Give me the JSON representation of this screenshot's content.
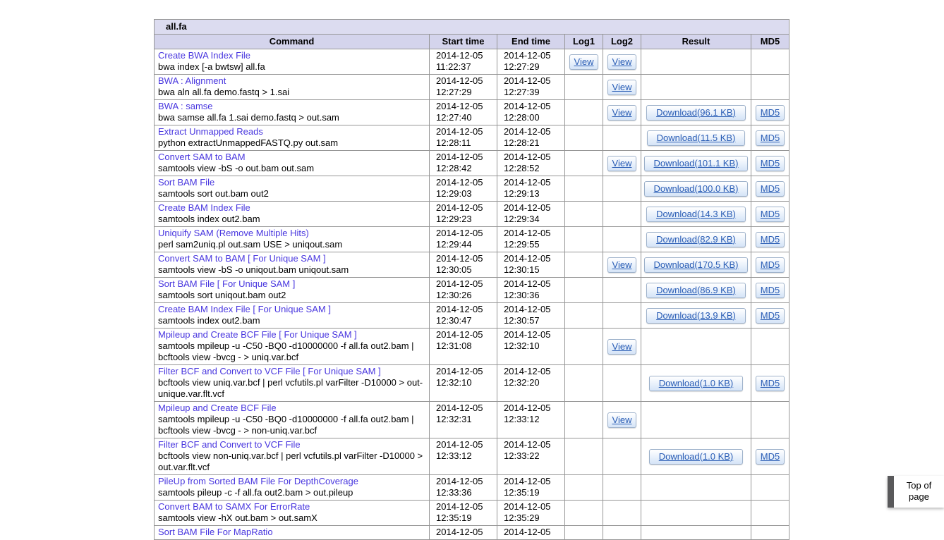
{
  "table": {
    "title": "all.fa",
    "columns": [
      "Command",
      "Start time",
      "End time",
      "Log1",
      "Log2",
      "Result",
      "MD5"
    ],
    "labels": {
      "view": "View",
      "md5": "MD5"
    },
    "rows": [
      {
        "title": "Create BWA Index File",
        "cmd": "bwa index [-a bwtsw] all.fa",
        "start": "2014-12-05 11:22:37",
        "end": "2014-12-05 12:27:29",
        "log1": true,
        "log2": true,
        "download": null,
        "md5": false
      },
      {
        "title": "BWA : Alignment",
        "cmd": "bwa aln all.fa demo.fastq > 1.sai",
        "start": "2014-12-05 12:27:29",
        "end": "2014-12-05 12:27:39",
        "log1": false,
        "log2": true,
        "download": null,
        "md5": false
      },
      {
        "title": "BWA : samse",
        "cmd": "bwa samse all.fa 1.sai demo.fastq > out.sam",
        "start": "2014-12-05 12:27:40",
        "end": "2014-12-05 12:28:00",
        "log1": false,
        "log2": true,
        "download": "Download(96.1 KB)",
        "md5": true
      },
      {
        "title": "Extract Unmapped Reads",
        "cmd": "python extractUnmappedFASTQ.py out.sam",
        "start": "2014-12-05 12:28:11",
        "end": "2014-12-05 12:28:21",
        "log1": false,
        "log2": false,
        "download": "Download(11.5 KB)",
        "md5": true
      },
      {
        "title": "Convert SAM to BAM",
        "cmd": "samtools view -bS -o out.bam out.sam",
        "start": "2014-12-05 12:28:42",
        "end": "2014-12-05 12:28:52",
        "log1": false,
        "log2": true,
        "download": "Download(101.1 KB)",
        "md5": true
      },
      {
        "title": "Sort BAM File",
        "cmd": "samtools sort out.bam out2",
        "start": "2014-12-05 12:29:03",
        "end": "2014-12-05 12:29:13",
        "log1": false,
        "log2": false,
        "download": "Download(100.0 KB)",
        "md5": true
      },
      {
        "title": "Create BAM Index File",
        "cmd": "samtools index out2.bam",
        "start": "2014-12-05 12:29:23",
        "end": "2014-12-05 12:29:34",
        "log1": false,
        "log2": false,
        "download": "Download(14.3 KB)",
        "md5": true
      },
      {
        "title": "Uniquify SAM (Remove Multiple Hits)",
        "cmd": "perl sam2uniq.pl out.sam USE > uniqout.sam",
        "start": "2014-12-05 12:29:44",
        "end": "2014-12-05 12:29:55",
        "log1": false,
        "log2": false,
        "download": "Download(82.9 KB)",
        "md5": true
      },
      {
        "title": "Convert SAM to BAM [ For Unique SAM ]",
        "cmd": "samtools view -bS -o uniqout.bam uniqout.sam",
        "start": "2014-12-05 12:30:05",
        "end": "2014-12-05 12:30:15",
        "log1": false,
        "log2": true,
        "download": "Download(170.5 KB)",
        "md5": true
      },
      {
        "title": "Sort BAM File [ For Unique SAM ]",
        "cmd": "samtools sort uniqout.bam out2",
        "start": "2014-12-05 12:30:26",
        "end": "2014-12-05 12:30:36",
        "log1": false,
        "log2": false,
        "download": "Download(86.9 KB)",
        "md5": true
      },
      {
        "title": "Create BAM Index File [ For Unique SAM ]",
        "cmd": "samtools index out2.bam",
        "start": "2014-12-05 12:30:47",
        "end": "2014-12-05 12:30:57",
        "log1": false,
        "log2": false,
        "download": "Download(13.9 KB)",
        "md5": true
      },
      {
        "title": "Mpileup and Create BCF File [ For Unique SAM ]",
        "cmd": "samtools mpileup -u -C50 -BQ0 -d10000000 -f all.fa out2.bam | bcftools view -bvcg - > uniq.var.bcf",
        "start": "2014-12-05 12:31:08",
        "end": "2014-12-05 12:32:10",
        "log1": false,
        "log2": true,
        "download": null,
        "md5": false
      },
      {
        "title": "Filter BCF and Convert to VCF File [ For Unique SAM ]",
        "cmd": "bcftools view uniq.var.bcf | perl vcfutils.pl varFilter -D10000 > out-unique.var.flt.vcf",
        "start": "2014-12-05 12:32:10",
        "end": "2014-12-05 12:32:20",
        "log1": false,
        "log2": false,
        "download": "Download(1.0 KB)",
        "md5": true
      },
      {
        "title": "Mpileup and Create BCF File",
        "cmd": "samtools mpileup -u -C50 -BQ0 -d10000000 -f all.fa out2.bam | bcftools view -bvcg - > non-uniq.var.bcf",
        "start": "2014-12-05 12:32:31",
        "end": "2014-12-05 12:33:12",
        "log1": false,
        "log2": true,
        "download": null,
        "md5": false
      },
      {
        "title": "Filter BCF and Convert to VCF File",
        "cmd": "bcftools view non-uniq.var.bcf | perl vcfutils.pl varFilter -D10000 > out.var.flt.vcf",
        "start": "2014-12-05 12:33:12",
        "end": "2014-12-05 12:33:22",
        "log1": false,
        "log2": false,
        "download": "Download(1.0 KB)",
        "md5": true
      },
      {
        "title": "PileUp from Sorted BAM File For DepthCoverage",
        "cmd": "samtools pileup -c -f all.fa out2.bam > out.pileup",
        "start": "2014-12-05 12:33:36",
        "end": "2014-12-05 12:35:19",
        "log1": false,
        "log2": false,
        "download": null,
        "md5": false
      },
      {
        "title": "Convert BAM to SAMX For ErrorRate",
        "cmd": "samtools view -hX out.bam > out.samX",
        "start": "2014-12-05 12:35:19",
        "end": "2014-12-05 12:35:29",
        "log1": false,
        "log2": false,
        "download": null,
        "md5": false
      },
      {
        "title": "Sort BAM File For MapRatio",
        "cmd": "",
        "start": "2014-12-05",
        "end": "2014-12-05",
        "log1": false,
        "log2": false,
        "download": null,
        "md5": false
      }
    ]
  },
  "top_of_page": {
    "line1": "Top of",
    "line2": "page"
  }
}
